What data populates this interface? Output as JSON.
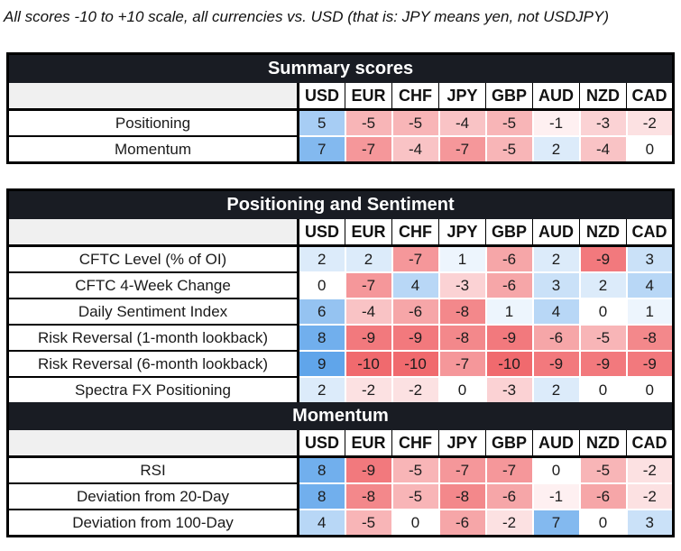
{
  "title": "All scores -10 to +10 scale, all currencies vs. USD (that is: JPY means yen, not USDJPY)",
  "chart_data": {
    "type": "heatmap",
    "value_range": [
      -10,
      10
    ],
    "columns": [
      "USD",
      "EUR",
      "CHF",
      "JPY",
      "GBP",
      "AUD",
      "NZD",
      "CAD"
    ],
    "colorscale": {
      "positive_max": "#4E9BE8",
      "negative_max": "#F06A6E",
      "zero": "#FFFFFF"
    },
    "sections": [
      {
        "title": "Summary scores",
        "rows": [
          {
            "label": "Positioning",
            "values": [
              5,
              -5,
              -5,
              -4,
              -5,
              -1,
              -3,
              -2
            ]
          },
          {
            "label": "Momentum",
            "values": [
              7,
              -7,
              -4,
              -7,
              -5,
              2,
              -4,
              0
            ]
          }
        ]
      },
      {
        "title": "Positioning and Sentiment",
        "rows": [
          {
            "label": "CFTC Level (% of OI)",
            "values": [
              2,
              2,
              -7,
              1,
              -6,
              2,
              -9,
              3
            ]
          },
          {
            "label": "CFTC 4-Week Change",
            "values": [
              0,
              -7,
              4,
              -3,
              -6,
              3,
              2,
              4
            ]
          },
          {
            "label": "Daily Sentiment Index",
            "values": [
              6,
              -4,
              -6,
              -8,
              1,
              4,
              0,
              1
            ]
          },
          {
            "label": "Risk Reversal (1-month lookback)",
            "values": [
              8,
              -9,
              -9,
              -8,
              -9,
              -6,
              -5,
              -8
            ]
          },
          {
            "label": "Risk Reversal (6-month lookback)",
            "values": [
              9,
              -10,
              -10,
              -7,
              -10,
              -9,
              -9,
              -9
            ]
          },
          {
            "label": "Spectra FX Positioning",
            "values": [
              2,
              -2,
              -2,
              0,
              -3,
              2,
              0,
              0
            ]
          }
        ]
      },
      {
        "title": "Momentum",
        "rows": [
          {
            "label": "RSI",
            "values": [
              8,
              -9,
              -5,
              -7,
              -7,
              0,
              -5,
              -2
            ]
          },
          {
            "label": "Deviation from 20-Day",
            "values": [
              8,
              -8,
              -5,
              -8,
              -6,
              -1,
              -6,
              -2
            ]
          },
          {
            "label": "Deviation from 100-Day",
            "values": [
              4,
              -5,
              0,
              -6,
              -2,
              7,
              0,
              3
            ]
          }
        ]
      }
    ]
  },
  "styles": {
    "band_bg": "#191C23",
    "band_text": "#FFFFFF",
    "corner_bg": "#F0F0F0"
  }
}
